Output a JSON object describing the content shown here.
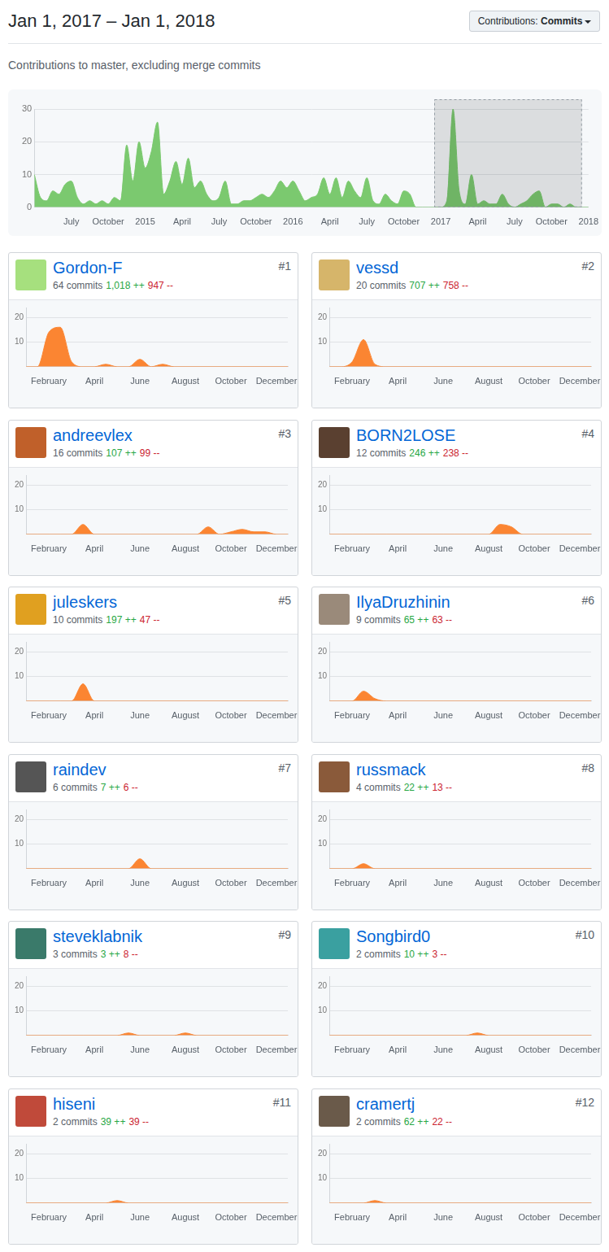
{
  "header": {
    "title": "Jan 1, 2017 – Jan 1, 2018",
    "filter_label": "Contributions:",
    "filter_value": "Commits",
    "subtitle": "Contributions to master, excluding merge commits"
  },
  "chart_data": [
    {
      "type": "area",
      "color": "#7bc96f",
      "grid": true,
      "ylim": [
        0,
        30
      ],
      "yticks": [
        0,
        10,
        20,
        30
      ],
      "highlight": {
        "from": "2017",
        "to": "2018"
      },
      "categories": [
        null,
        null,
        null,
        null,
        null,
        null,
        "July",
        null,
        null,
        null,
        null,
        null,
        "October",
        null,
        null,
        null,
        null,
        null,
        "2015",
        null,
        null,
        null,
        null,
        null,
        "April",
        null,
        null,
        null,
        null,
        null,
        "July",
        null,
        null,
        null,
        null,
        null,
        "October",
        null,
        null,
        null,
        null,
        null,
        "2016",
        null,
        null,
        null,
        null,
        null,
        "April",
        null,
        null,
        null,
        null,
        null,
        "July",
        null,
        null,
        null,
        null,
        null,
        "October",
        null,
        null,
        null,
        null,
        null,
        "2017",
        null,
        null,
        null,
        null,
        null,
        "April",
        null,
        null,
        null,
        null,
        null,
        "July",
        null,
        null,
        null,
        null,
        null,
        "October",
        null,
        null,
        null,
        null,
        null,
        "2018"
      ],
      "values": [
        10,
        3,
        2,
        5,
        4,
        7,
        8,
        3,
        1,
        2,
        1,
        2,
        1,
        3,
        2,
        19,
        8,
        20,
        12,
        17,
        26,
        4,
        8,
        14,
        7,
        15,
        6,
        8,
        4,
        2,
        3,
        8,
        1,
        1,
        2,
        2,
        3,
        4,
        3,
        5,
        8,
        6,
        8,
        5,
        2,
        3,
        4,
        9,
        4,
        9,
        3,
        8,
        5,
        3,
        9,
        2,
        1,
        4,
        2,
        1,
        5,
        4,
        0,
        0,
        0,
        0,
        0,
        2,
        30,
        5,
        1,
        10,
        1,
        2,
        1,
        1,
        4,
        1,
        0,
        1,
        2,
        4,
        5,
        0,
        1,
        1,
        0,
        1,
        0,
        0,
        0
      ]
    },
    {
      "type": "area",
      "title": "Gordon-F",
      "rank": "#1",
      "subtitle": "64 commits",
      "additions": "1,018 ++",
      "deletions": "947 --",
      "color": "#fb8532",
      "grid": true,
      "ylim": [
        0,
        24
      ],
      "yticks": [
        10,
        20
      ],
      "categories": [
        null,
        null,
        "February",
        null,
        null,
        null,
        "April",
        null,
        null,
        null,
        "June",
        null,
        null,
        null,
        "August",
        null,
        null,
        null,
        "October",
        null,
        null,
        null,
        "December",
        null
      ],
      "values": [
        0,
        0,
        14,
        16,
        2,
        0,
        0,
        1,
        0,
        0,
        3,
        0,
        1,
        0,
        0,
        0,
        0,
        0,
        0,
        0,
        0,
        0,
        0,
        0
      ]
    },
    {
      "type": "area",
      "title": "vessd",
      "rank": "#2",
      "subtitle": "20 commits",
      "additions": "707 ++",
      "deletions": "758 --",
      "color": "#fb8532",
      "grid": true,
      "ylim": [
        0,
        24
      ],
      "yticks": [
        10,
        20
      ],
      "categories": [
        null,
        null,
        "February",
        null,
        null,
        null,
        "April",
        null,
        null,
        null,
        "June",
        null,
        null,
        null,
        "August",
        null,
        null,
        null,
        "October",
        null,
        null,
        null,
        "December",
        null
      ],
      "values": [
        0,
        0,
        2,
        11,
        1,
        0,
        0,
        0,
        0,
        0,
        0,
        0,
        0,
        0,
        0,
        0,
        0,
        0,
        0,
        0,
        0,
        0,
        0,
        0
      ]
    },
    {
      "type": "area",
      "title": "andreevlex",
      "rank": "#3",
      "subtitle": "16 commits",
      "additions": "107 ++",
      "deletions": "99 --",
      "color": "#fb8532",
      "grid": true,
      "ylim": [
        0,
        24
      ],
      "yticks": [
        10,
        20
      ],
      "categories": [
        null,
        null,
        "February",
        null,
        null,
        null,
        "April",
        null,
        null,
        null,
        "June",
        null,
        null,
        null,
        "August",
        null,
        null,
        null,
        "October",
        null,
        null,
        null,
        "December",
        null
      ],
      "values": [
        0,
        0,
        0,
        0,
        0,
        4,
        0,
        0,
        0,
        0,
        0,
        0,
        0,
        0,
        0,
        0,
        3,
        0,
        1,
        2,
        1,
        1,
        0,
        0
      ]
    },
    {
      "type": "area",
      "title": "BORN2LOSE",
      "rank": "#4",
      "subtitle": "12 commits",
      "additions": "246 ++",
      "deletions": "238 --",
      "color": "#fb8532",
      "grid": true,
      "ylim": [
        0,
        24
      ],
      "yticks": [
        10,
        20
      ],
      "categories": [
        null,
        null,
        "February",
        null,
        null,
        null,
        "April",
        null,
        null,
        null,
        "June",
        null,
        null,
        null,
        "August",
        null,
        null,
        null,
        "October",
        null,
        null,
        null,
        "December",
        null
      ],
      "values": [
        0,
        0,
        0,
        0,
        0,
        0,
        0,
        0,
        0,
        0,
        0,
        0,
        0,
        0,
        0,
        4,
        3,
        0,
        0,
        0,
        0,
        0,
        0,
        0
      ]
    },
    {
      "type": "area",
      "title": "juleskers",
      "rank": "#5",
      "subtitle": "10 commits",
      "additions": "197 ++",
      "deletions": "47 --",
      "color": "#fb8532",
      "grid": true,
      "ylim": [
        0,
        24
      ],
      "yticks": [
        10,
        20
      ],
      "categories": [
        null,
        null,
        "February",
        null,
        null,
        null,
        "April",
        null,
        null,
        null,
        "June",
        null,
        null,
        null,
        "August",
        null,
        null,
        null,
        "October",
        null,
        null,
        null,
        "December",
        null
      ],
      "values": [
        0,
        0,
        0,
        0,
        0,
        7,
        0,
        0,
        0,
        0,
        0,
        0,
        0,
        0,
        0,
        0,
        0,
        0,
        0,
        0,
        0,
        0,
        0,
        0
      ]
    },
    {
      "type": "area",
      "title": "IlyaDruzhinin",
      "rank": "#6",
      "subtitle": "9 commits",
      "additions": "65 ++",
      "deletions": "63 --",
      "color": "#fb8532",
      "grid": true,
      "ylim": [
        0,
        24
      ],
      "yticks": [
        10,
        20
      ],
      "categories": [
        null,
        null,
        "February",
        null,
        null,
        null,
        "April",
        null,
        null,
        null,
        "June",
        null,
        null,
        null,
        "August",
        null,
        null,
        null,
        "October",
        null,
        null,
        null,
        "December",
        null
      ],
      "values": [
        0,
        0,
        0,
        4,
        1,
        0,
        0,
        0,
        0,
        0,
        0,
        0,
        0,
        0,
        0,
        0,
        0,
        0,
        0,
        0,
        0,
        0,
        0,
        0
      ]
    },
    {
      "type": "area",
      "title": "raindev",
      "rank": "#7",
      "subtitle": "6 commits",
      "additions": "7 ++",
      "deletions": "6 --",
      "color": "#fb8532",
      "grid": true,
      "ylim": [
        0,
        24
      ],
      "yticks": [
        10,
        20
      ],
      "categories": [
        null,
        null,
        "February",
        null,
        null,
        null,
        "April",
        null,
        null,
        null,
        "June",
        null,
        null,
        null,
        "August",
        null,
        null,
        null,
        "October",
        null,
        null,
        null,
        "December",
        null
      ],
      "values": [
        0,
        0,
        0,
        0,
        0,
        0,
        0,
        0,
        0,
        0,
        4,
        0,
        0,
        0,
        0,
        0,
        0,
        0,
        0,
        0,
        0,
        0,
        0,
        0
      ]
    },
    {
      "type": "area",
      "title": "russmack",
      "rank": "#8",
      "subtitle": "4 commits",
      "additions": "22 ++",
      "deletions": "13 --",
      "color": "#fb8532",
      "grid": true,
      "ylim": [
        0,
        24
      ],
      "yticks": [
        10,
        20
      ],
      "categories": [
        null,
        null,
        "February",
        null,
        null,
        null,
        "April",
        null,
        null,
        null,
        "June",
        null,
        null,
        null,
        "August",
        null,
        null,
        null,
        "October",
        null,
        null,
        null,
        "December",
        null
      ],
      "values": [
        0,
        0,
        0,
        2,
        0,
        0,
        0,
        0,
        0,
        0,
        0,
        0,
        0,
        0,
        0,
        0,
        0,
        0,
        0,
        0,
        0,
        0,
        0,
        0
      ]
    },
    {
      "type": "area",
      "title": "steveklabnik",
      "rank": "#9",
      "subtitle": "3 commits",
      "additions": "3 ++",
      "deletions": "8 --",
      "color": "#fb8532",
      "grid": true,
      "ylim": [
        0,
        24
      ],
      "yticks": [
        10,
        20
      ],
      "categories": [
        null,
        null,
        "February",
        null,
        null,
        null,
        "April",
        null,
        null,
        null,
        "June",
        null,
        null,
        null,
        "August",
        null,
        null,
        null,
        "October",
        null,
        null,
        null,
        "December",
        null
      ],
      "values": [
        0,
        0,
        0,
        0,
        0,
        0,
        0,
        0,
        0,
        1,
        0,
        0,
        0,
        0,
        1,
        0,
        0,
        0,
        0,
        0,
        0,
        0,
        0,
        0
      ]
    },
    {
      "type": "area",
      "title": "Songbird0",
      "rank": "#10",
      "subtitle": "2 commits",
      "additions": "10 ++",
      "deletions": "3 --",
      "color": "#fb8532",
      "grid": true,
      "ylim": [
        0,
        24
      ],
      "yticks": [
        10,
        20
      ],
      "categories": [
        null,
        null,
        "February",
        null,
        null,
        null,
        "April",
        null,
        null,
        null,
        "June",
        null,
        null,
        null,
        "August",
        null,
        null,
        null,
        "October",
        null,
        null,
        null,
        "December",
        null
      ],
      "values": [
        0,
        0,
        0,
        0,
        0,
        0,
        0,
        0,
        0,
        0,
        0,
        0,
        0,
        1,
        0,
        0,
        0,
        0,
        0,
        0,
        0,
        0,
        0,
        0
      ]
    },
    {
      "type": "area",
      "title": "hiseni",
      "rank": "#11",
      "subtitle": "2 commits",
      "additions": "39 ++",
      "deletions": "39 --",
      "color": "#fb8532",
      "grid": true,
      "ylim": [
        0,
        24
      ],
      "yticks": [
        10,
        20
      ],
      "categories": [
        null,
        null,
        "February",
        null,
        null,
        null,
        "April",
        null,
        null,
        null,
        "June",
        null,
        null,
        null,
        "August",
        null,
        null,
        null,
        "October",
        null,
        null,
        null,
        "December",
        null
      ],
      "values": [
        0,
        0,
        0,
        0,
        0,
        0,
        0,
        0,
        1,
        0,
        0,
        0,
        0,
        0,
        0,
        0,
        0,
        0,
        0,
        0,
        0,
        0,
        0,
        0
      ]
    },
    {
      "type": "area",
      "title": "cramertj",
      "rank": "#12",
      "subtitle": "2 commits",
      "additions": "62 ++",
      "deletions": "22 --",
      "color": "#fb8532",
      "grid": true,
      "ylim": [
        0,
        24
      ],
      "yticks": [
        10,
        20
      ],
      "categories": [
        null,
        null,
        "February",
        null,
        null,
        null,
        "April",
        null,
        null,
        null,
        "June",
        null,
        null,
        null,
        "August",
        null,
        null,
        null,
        "October",
        null,
        null,
        null,
        "December",
        null
      ],
      "values": [
        0,
        0,
        0,
        0,
        1,
        0,
        0,
        0,
        0,
        0,
        0,
        0,
        0,
        0,
        0,
        0,
        0,
        0,
        0,
        0,
        0,
        0,
        0,
        0
      ]
    }
  ]
}
